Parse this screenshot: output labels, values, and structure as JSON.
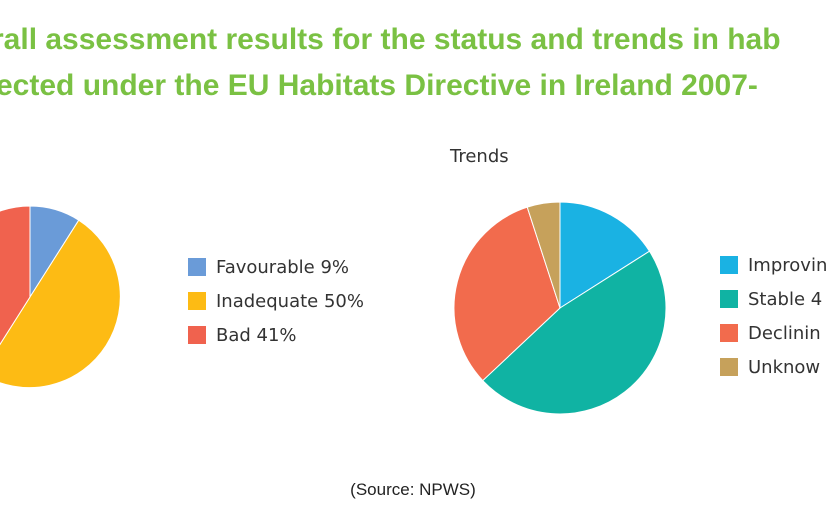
{
  "title": {
    "line1": "rall assessment results for the status and trends in hab",
    "line2": "ected under the EU Habitats Directive in Ireland 2007-"
  },
  "source": "(Source: NPWS)",
  "chart_data": [
    {
      "type": "pie",
      "title": "",
      "labels": [
        "Favourable",
        "Inadequate",
        "Bad"
      ],
      "values": [
        9,
        50,
        41
      ],
      "legend_labels": [
        "Favourable 9%",
        "Inadequate 50%",
        "Bad 41%"
      ],
      "colors": [
        "#6a9bd8",
        "#fdbb14",
        "#f0624e"
      ],
      "legend": "right"
    },
    {
      "type": "pie",
      "title": "Trends",
      "labels": [
        "Improving",
        "Stable",
        "Declining",
        "Unknown"
      ],
      "values": [
        16,
        47,
        32,
        5
      ],
      "legend_labels": [
        "Improvin",
        "Stable 4",
        "Declinin",
        "Unknow"
      ],
      "colors": [
        "#1ab2e3",
        "#10b3a3",
        "#f26b4d",
        "#c6a15b"
      ],
      "legend": "right"
    }
  ]
}
